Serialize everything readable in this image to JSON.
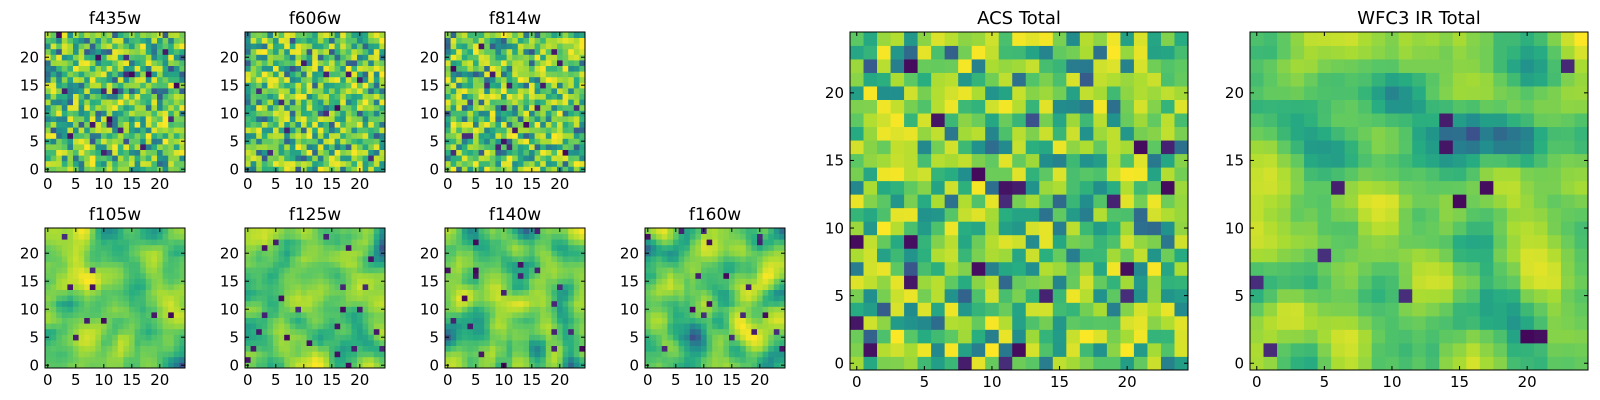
{
  "chart_data": [
    {
      "type": "heatmap",
      "title": "f435w",
      "grid_size": 25,
      "xticks": [
        "0",
        "5",
        "10",
        "15",
        "20"
      ],
      "yticks": [
        "0",
        "5",
        "10",
        "15",
        "20"
      ],
      "xlim": [
        0,
        24
      ],
      "ylim": [
        0,
        24
      ],
      "colormap": "viridis",
      "texture": "noise",
      "seed": 11
    },
    {
      "type": "heatmap",
      "title": "f606w",
      "grid_size": 25,
      "xticks": [
        "0",
        "5",
        "10",
        "15",
        "20"
      ],
      "yticks": [
        "0",
        "5",
        "10",
        "15",
        "20"
      ],
      "xlim": [
        0,
        24
      ],
      "ylim": [
        0,
        24
      ],
      "colormap": "viridis",
      "texture": "noise",
      "seed": 23
    },
    {
      "type": "heatmap",
      "title": "f814w",
      "grid_size": 25,
      "xticks": [
        "0",
        "5",
        "10",
        "15",
        "20"
      ],
      "yticks": [
        "0",
        "5",
        "10",
        "15",
        "20"
      ],
      "xlim": [
        0,
        24
      ],
      "ylim": [
        0,
        24
      ],
      "colormap": "viridis",
      "texture": "noise",
      "seed": 37
    },
    {
      "type": "heatmap",
      "title": "f105w",
      "grid_size": 25,
      "xticks": [
        "0",
        "5",
        "10",
        "15",
        "20"
      ],
      "yticks": [
        "0",
        "5",
        "10",
        "15",
        "20"
      ],
      "xlim": [
        0,
        24
      ],
      "ylim": [
        0,
        24
      ],
      "colormap": "viridis",
      "texture": "smooth",
      "seed": 41
    },
    {
      "type": "heatmap",
      "title": "f125w",
      "grid_size": 25,
      "xticks": [
        "0",
        "5",
        "10",
        "15",
        "20"
      ],
      "yticks": [
        "0",
        "5",
        "10",
        "15",
        "20"
      ],
      "xlim": [
        0,
        24
      ],
      "ylim": [
        0,
        24
      ],
      "colormap": "viridis",
      "texture": "smooth",
      "seed": 53
    },
    {
      "type": "heatmap",
      "title": "f140w",
      "grid_size": 25,
      "xticks": [
        "0",
        "5",
        "10",
        "15",
        "20"
      ],
      "yticks": [
        "0",
        "5",
        "10",
        "15",
        "20"
      ],
      "xlim": [
        0,
        24
      ],
      "ylim": [
        0,
        24
      ],
      "colormap": "viridis",
      "texture": "smooth",
      "seed": 67
    },
    {
      "type": "heatmap",
      "title": "f160w",
      "grid_size": 25,
      "xticks": [
        "0",
        "5",
        "10",
        "15",
        "20"
      ],
      "yticks": [
        "0",
        "5",
        "10",
        "15",
        "20"
      ],
      "xlim": [
        0,
        24
      ],
      "ylim": [
        0,
        24
      ],
      "colormap": "viridis",
      "texture": "smooth",
      "seed": 79
    },
    {
      "type": "heatmap",
      "title": "ACS Total",
      "grid_size": 25,
      "xticks": [
        "0",
        "5",
        "10",
        "15",
        "20"
      ],
      "yticks": [
        "0",
        "5",
        "10",
        "15",
        "20"
      ],
      "xlim": [
        0,
        24
      ],
      "ylim": [
        0,
        24
      ],
      "colormap": "viridis",
      "texture": "noise",
      "seed": 83
    },
    {
      "type": "heatmap",
      "title": "WFC3 IR Total",
      "grid_size": 25,
      "xticks": [
        "0",
        "5",
        "10",
        "15",
        "20"
      ],
      "yticks": [
        "0",
        "5",
        "10",
        "15",
        "20"
      ],
      "xlim": [
        0,
        24
      ],
      "ylim": [
        0,
        24
      ],
      "colormap": "viridis",
      "texture": "smooth",
      "seed": 97
    }
  ]
}
